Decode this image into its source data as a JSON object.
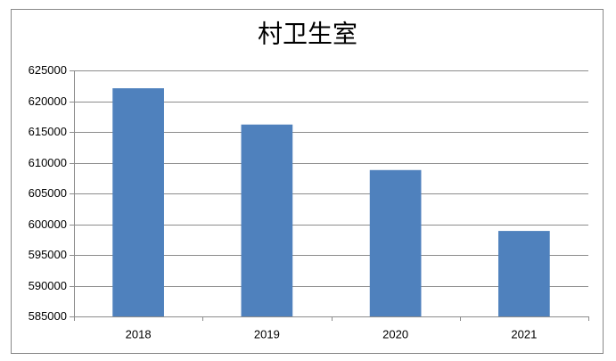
{
  "chart_data": {
    "type": "bar",
    "title": "村卫生室",
    "categories": [
      "2018",
      "2019",
      "2020",
      "2021"
    ],
    "values": [
      622100,
      616200,
      608800,
      598900
    ],
    "color": "#4f81bd",
    "ylim": [
      585000,
      625000
    ],
    "yticks": [
      585000,
      590000,
      595000,
      600000,
      605000,
      610000,
      615000,
      620000,
      625000
    ],
    "grid": true
  }
}
